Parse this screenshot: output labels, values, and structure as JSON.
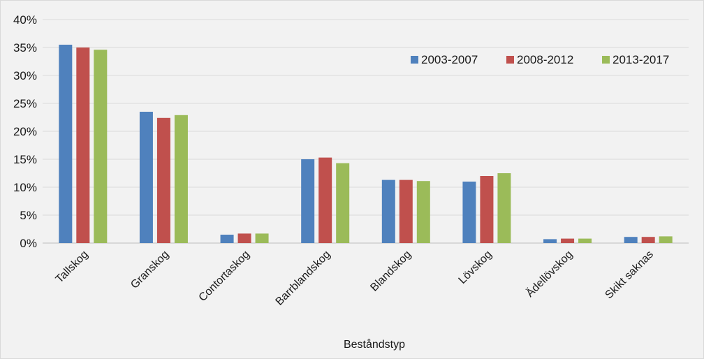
{
  "chart_data": {
    "type": "bar",
    "title": "",
    "xlabel": "Beståndstyp",
    "ylabel": "",
    "ylim": [
      0,
      40
    ],
    "yticks": [
      "0%",
      "5%",
      "10%",
      "15%",
      "20%",
      "25%",
      "30%",
      "35%",
      "40%"
    ],
    "grid": true,
    "legend_position": "top-right",
    "categories": [
      "Tallskog",
      "Granskog",
      "Contortaskog",
      "Barrblandskog",
      "Blandskog",
      "Lövskog",
      "Ädellövskog",
      "Skikt saknas"
    ],
    "series": [
      {
        "name": "2003-2007",
        "color": "#4f81bd",
        "values": [
          35.5,
          23.5,
          1.5,
          15.0,
          11.3,
          11.0,
          0.7,
          1.1
        ]
      },
      {
        "name": "2008-2012",
        "color": "#c0504d",
        "values": [
          35.0,
          22.4,
          1.7,
          15.3,
          11.3,
          12.0,
          0.8,
          1.1
        ]
      },
      {
        "name": "2013-2017",
        "color": "#9bbb59",
        "values": [
          34.6,
          22.9,
          1.7,
          14.3,
          11.1,
          12.5,
          0.8,
          1.2
        ]
      }
    ]
  }
}
